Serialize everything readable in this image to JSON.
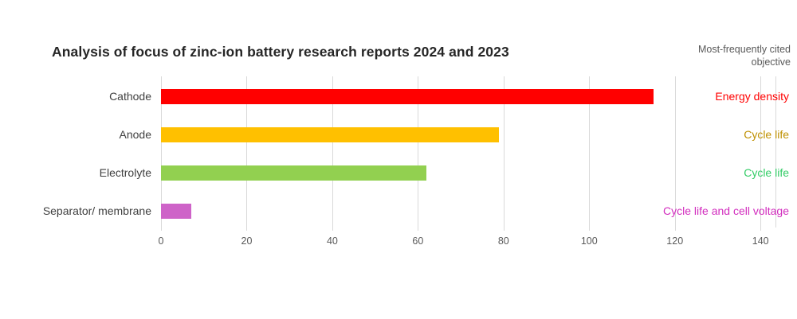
{
  "chart": {
    "title": "Analysis of focus of zinc-ion battery research reports 2024 and 2023",
    "objective_header": "Most-frequently cited objective"
  },
  "chart_data": {
    "type": "bar",
    "orientation": "horizontal",
    "title": "Analysis of focus of zinc-ion battery research reports 2024 and 2023",
    "xlabel": "",
    "ylabel": "",
    "categories": [
      "Cathode",
      "Anode",
      "Electrolyte",
      "Separator/ membrane"
    ],
    "values": [
      115,
      79,
      62,
      7
    ],
    "bar_colors": [
      "#ff0000",
      "#ffc000",
      "#92d050",
      "#ce63c8"
    ],
    "objectives": [
      {
        "label": "Energy density",
        "color": "#ff0000"
      },
      {
        "label": "Cycle life",
        "color": "#bf9000"
      },
      {
        "label": "Cycle life",
        "color": "#33cc66"
      },
      {
        "label": "Cycle life and cell voltage",
        "color": "#d22dbe"
      }
    ],
    "objective_column_header": "Most-frequently cited objective",
    "xticks": [
      0,
      20,
      40,
      60,
      80,
      100,
      120,
      140
    ],
    "xlim": [
      0,
      143.5
    ],
    "grid": true,
    "legend": "none",
    "gridline_color": "#d9d9d9",
    "tick_label_color": "#595959",
    "category_label_color": "#404040",
    "header_color": "#595959",
    "title_color": "#262626",
    "background_color": "#ffffff"
  }
}
